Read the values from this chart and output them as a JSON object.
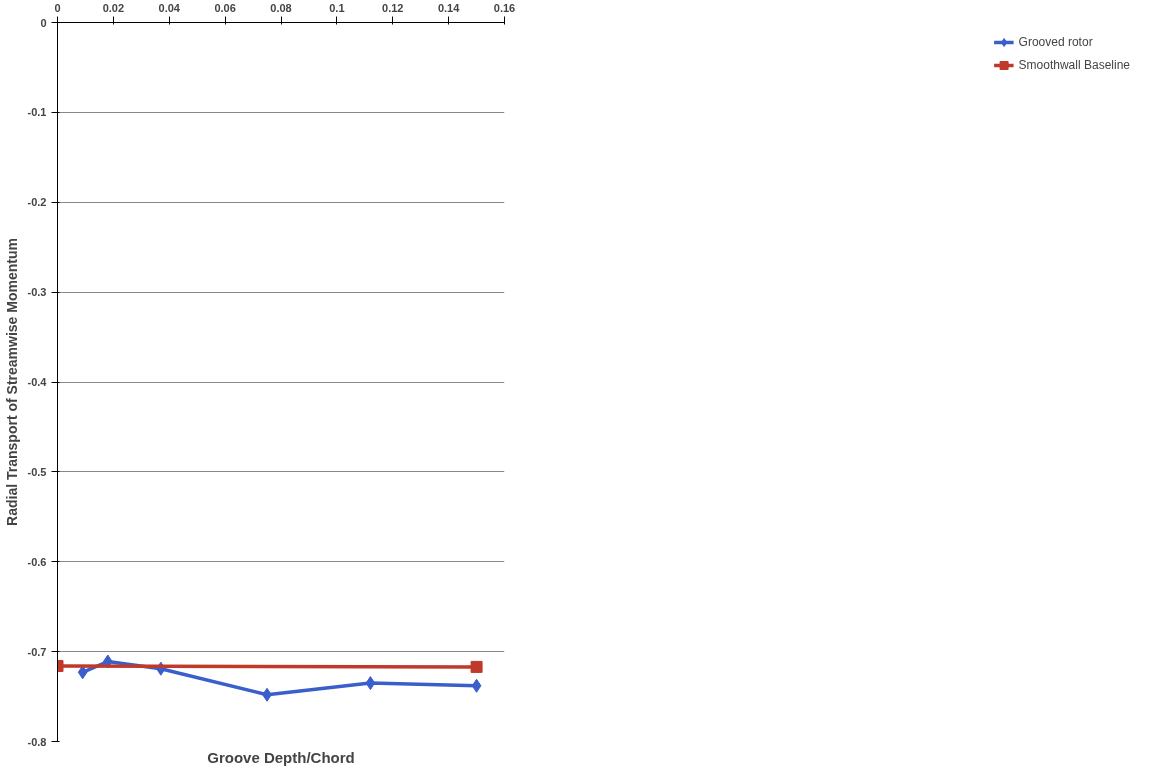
{
  "chart_data": {
    "type": "line",
    "xlabel": "Groove Depth/Chord",
    "ylabel": "Radial Transport of Streamwise Momentum",
    "xlim": [
      0,
      0.16
    ],
    "xticks": [
      0,
      0.02,
      0.04,
      0.06,
      0.08,
      0.1,
      0.12,
      0.14,
      0.16
    ],
    "ylim": [
      -0.8,
      0
    ],
    "yticks": [
      -0.8,
      -0.7,
      -0.6,
      -0.5,
      -0.4,
      -0.3,
      -0.2,
      -0.1,
      0
    ],
    "grid": "y",
    "legend": "right",
    "series": [
      {
        "name": "Grooved rotor",
        "color": "#3a5fcd",
        "marker": "diamond",
        "x": [
          0.009,
          0.018,
          0.037,
          0.075,
          0.112,
          0.15
        ],
        "values": [
          -0.723,
          -0.711,
          -0.719,
          -0.748,
          -0.735,
          -0.738
        ]
      },
      {
        "name": "Smoothwall Baseline",
        "color": "#c0392b",
        "marker": "square",
        "x": [
          0,
          0.15
        ],
        "values": [
          -0.716,
          -0.717
        ]
      }
    ]
  }
}
